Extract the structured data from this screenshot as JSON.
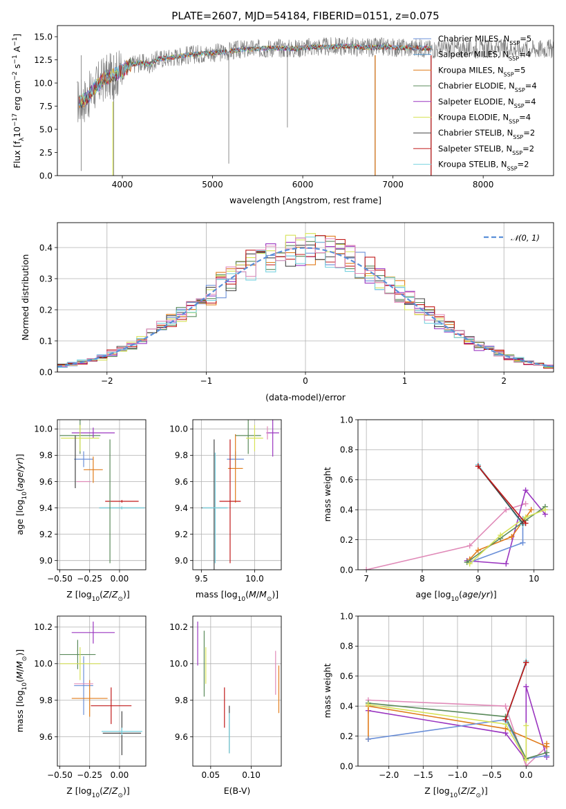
{
  "colors": {
    "Chabrier MILES": "#6a8fd8",
    "Salpeter MILES": "#4a8fc8",
    "Kroupa MILES": "#e07b1a",
    "Chabrier ELODIE": "#5a8a5a",
    "Salpeter ELODIE": "#9a35c0",
    "Kroupa ELODIE": "#d6e256",
    "Chabrier STELIB": "#444444",
    "Salpeter STELIB": "#c01818",
    "Kroupa STELIB": "#78d2e0",
    "data": "#808080",
    "extra_pink": "#e08ab8"
  },
  "chart_data": [
    {
      "type": "line",
      "title": "PLATE=2607, MJD=54184, FIBERID=0151, z=0.075",
      "xlabel": "wavelength [Angstrom, rest frame]",
      "ylabel": "Flux [f$_\\lambda$10$^{-17}$ erg cm$^{-2}$ s$^{-1}$ A$^{-1}$]",
      "ylabel_parts": [
        "Flux [f",
        "λ",
        "10",
        "−17",
        " erg cm",
        "−2",
        " s",
        "−1",
        " A",
        "−1",
        "]"
      ],
      "xlim": [
        3280,
        8780
      ],
      "ylim": [
        0,
        16.2
      ],
      "xticks": [
        "4000",
        "5000",
        "6000",
        "7000",
        "8000"
      ],
      "yticks": [
        "0.0",
        "2.5",
        "5.0",
        "7.5",
        "10.0",
        "12.5",
        "15.0"
      ],
      "xtick_values": [
        4000,
        5000,
        6000,
        7000,
        8000
      ],
      "ytick_values": [
        0,
        2.5,
        5,
        7.5,
        10,
        12.5,
        15
      ],
      "legend_position": "upper-right",
      "series": [
        {
          "name": "Chabrier MILES, N$_{SSP}$=5",
          "label": "Chabrier MILES, N",
          "sub": "SSP",
          "suffix": "=5",
          "color_key": "Chabrier MILES"
        },
        {
          "name": "Salpeter MILES, N$_{SSP}$=4",
          "label": "Salpeter MILES, N",
          "sub": "SSP",
          "suffix": "=4",
          "color_key": "Salpeter MILES"
        },
        {
          "name": "Kroupa MILES, N$_{SSP}$=5",
          "label": "Kroupa MILES, N",
          "sub": "SSP",
          "suffix": "=5",
          "color_key": "Kroupa MILES"
        },
        {
          "name": "Chabrier ELODIE, N$_{SSP}$=4",
          "label": "Chabrier ELODIE, N",
          "sub": "SSP",
          "suffix": "=4",
          "color_key": "Chabrier ELODIE"
        },
        {
          "name": "Salpeter ELODIE, N$_{SSP}$=4",
          "label": "Salpeter ELODIE, N",
          "sub": "SSP",
          "suffix": "=4",
          "color_key": "Salpeter ELODIE"
        },
        {
          "name": "Kroupa ELODIE, N$_{SSP}$=4",
          "label": "Kroupa ELODIE, N",
          "sub": "SSP",
          "suffix": "=4",
          "color_key": "Kroupa ELODIE"
        },
        {
          "name": "Chabrier STELIB, N$_{SSP}$=2",
          "label": "Chabrier STELIB, N",
          "sub": "SSP",
          "suffix": "=2",
          "color_key": "Chabrier STELIB"
        },
        {
          "name": "Salpeter STELIB, N$_{SSP}$=2",
          "label": "Salpeter STELIB, N",
          "sub": "SSP",
          "suffix": "=2",
          "color_key": "Salpeter STELIB"
        },
        {
          "name": "Kroupa STELIB, N$_{SSP}$=2",
          "label": "Kroupa STELIB, N",
          "sub": "SSP",
          "suffix": "=2",
          "color_key": "Kroupa STELIB"
        }
      ],
      "spectrum_anchors": {
        "x": [
          3520,
          3600,
          3700,
          3800,
          3900,
          4000,
          4100,
          4200,
          4300,
          4400,
          4500,
          4700,
          4900,
          5100,
          5300,
          5500,
          5700,
          5900,
          6100,
          6300,
          6500,
          6700,
          6900,
          7100,
          7300,
          7400
        ],
        "y": [
          8.0,
          8.3,
          9.5,
          10.5,
          10.8,
          11.3,
          12.0,
          12.2,
          12.0,
          12.6,
          12.7,
          13.0,
          13.2,
          13.3,
          13.6,
          13.7,
          13.8,
          13.7,
          13.9,
          13.9,
          14.0,
          13.8,
          13.9,
          13.8,
          13.8,
          13.7
        ]
      },
      "spectrum_noise": 1.3,
      "spectrum_range": [
        3500,
        7430
      ],
      "dips": [
        {
          "x": 3545,
          "y": 0.5
        },
        {
          "x": 3905,
          "y": 0.0
        },
        {
          "x": 5180,
          "y": 1.3
        },
        {
          "x": 5830,
          "y": 5.2
        },
        {
          "x": 6800,
          "y": 0.0
        },
        {
          "x": 7420,
          "y": 0.0
        }
      ]
    },
    {
      "type": "histogram",
      "xlabel": "(data-model)/error",
      "ylabel": "Normed distribution",
      "xlim": [
        -2.5,
        2.5
      ],
      "ylim": [
        0,
        0.48
      ],
      "xticks": [
        "−2",
        "−1",
        "0",
        "1",
        "2"
      ],
      "yticks": [
        "0.0",
        "0.1",
        "0.2",
        "0.3",
        "0.4"
      ],
      "xtick_values": [
        -2,
        -1,
        0,
        1,
        2
      ],
      "ytick_values": [
        0,
        0.1,
        0.2,
        0.3,
        0.4
      ],
      "bin_width": 0.1,
      "grid": true,
      "legend_position": "upper-right",
      "legend_label": "𝒩(0, 1)",
      "reference_curve": {
        "name": "N(0,1)",
        "mean": 0,
        "sigma": 1,
        "color": "#5b8fd8"
      }
    },
    {
      "type": "errorbar",
      "xlabel": "Z [log$_{10}$(Z/Z$_\\odot$)]",
      "xlabel_parts": [
        "Z [log",
        "10",
        "(",
        "Z",
        "/",
        "Z",
        "⊙",
        ")]"
      ],
      "ylabel": "age  [log$_{10}$(age/yr)]",
      "ylabel_parts": [
        "age  [log",
        "10",
        "(",
        "age",
        "/",
        "yr",
        ")]"
      ],
      "xlim": [
        -0.52,
        0.22
      ],
      "ylim": [
        8.93,
        10.07
      ],
      "xticks": [
        "−0.50",
        "−0.25",
        "0.00"
      ],
      "xtick_values": [
        -0.5,
        -0.25,
        0.0
      ],
      "yticks": [
        "9.0",
        "9.2",
        "9.4",
        "9.6",
        "9.8",
        "10.0"
      ],
      "ytick_values": [
        9.0,
        9.2,
        9.4,
        9.6,
        9.8,
        10.0
      ],
      "points": [
        {
          "c": "Chabrier MILES",
          "x": -0.3,
          "y": 9.77,
          "xe": 0.08,
          "ye": 0.06
        },
        {
          "c": "Kroupa MILES",
          "x": -0.22,
          "y": 9.69,
          "xe": 0.08,
          "ye": 0.1
        },
        {
          "c": "Chabrier ELODIE",
          "x": -0.33,
          "y": 9.95,
          "xe": 0.17,
          "ye": 0.14
        },
        {
          "c": "Salpeter ELODIE",
          "x": -0.22,
          "y": 9.97,
          "xe": 0.18,
          "ye": 0.04
        },
        {
          "c": "Kroupa ELODIE",
          "x": -0.33,
          "y": 9.93,
          "xe": 0.16,
          "ye": 0.1
        },
        {
          "c": "Salpeter STELIB",
          "x": 0.02,
          "y": 9.45,
          "xe": 0.14,
          "ye": 0.01
        },
        {
          "c": "Chabrier STELIB",
          "x": 0.02,
          "y": 9.4,
          "xe": 0.19,
          "ye": 0.01
        },
        {
          "c": "Kroupa STELIB",
          "x": 0.02,
          "y": 9.4,
          "xe": 0.19,
          "ye": 0.01
        },
        {
          "c": "Chabrier ELODIE",
          "x": -0.08,
          "y": 9.45,
          "xe": 0.0,
          "ye": 0.47
        },
        {
          "c": "Chabrier STELIB",
          "x": -0.37,
          "y": 9.75,
          "xe": 0.0,
          "ye": 0.2
        },
        {
          "c": "extra_pink",
          "x": -0.3,
          "y": 9.6,
          "xe": 0.06,
          "ye": 0.0
        }
      ]
    },
    {
      "type": "errorbar",
      "xlabel": "mass [log$_{10}$(M/M$_\\odot$)]",
      "xlabel_parts": [
        "mass [log",
        "10",
        "(",
        "M",
        "/",
        "M",
        "⊙",
        ")]"
      ],
      "xlim": [
        9.42,
        10.25
      ],
      "ylim": [
        8.93,
        10.07
      ],
      "xticks": [
        "9.5",
        "10.0"
      ],
      "xtick_values": [
        9.5,
        10.0
      ],
      "yticks": [
        "9.0",
        "9.2",
        "9.4",
        "9.6",
        "9.8",
        "10.0"
      ],
      "ytick_values": [
        9.0,
        9.2,
        9.4,
        9.6,
        9.8,
        10.0
      ],
      "points": [
        {
          "c": "Chabrier MILES",
          "x": 9.82,
          "y": 9.77,
          "xe": 0.08,
          "ye": 0.06
        },
        {
          "c": "Kroupa MILES",
          "x": 9.82,
          "y": 9.7,
          "xe": 0.07,
          "ye": 0.26
        },
        {
          "c": "Chabrier ELODIE",
          "x": 9.94,
          "y": 9.95,
          "xe": 0.12,
          "ye": 0.14
        },
        {
          "c": "Salpeter ELODIE",
          "x": 10.17,
          "y": 9.97,
          "xe": 0.06,
          "ye": 0.18
        },
        {
          "c": "Kroupa ELODIE",
          "x": 10.0,
          "y": 9.93,
          "xe": 0.08,
          "ye": 0.1
        },
        {
          "c": "Salpeter STELIB",
          "x": 9.77,
          "y": 9.45,
          "xe": 0.1,
          "ye": 0.47
        },
        {
          "c": "Chabrier STELIB",
          "x": 9.62,
          "y": 9.4,
          "xe": 0.12,
          "ye": 0.52
        },
        {
          "c": "Kroupa STELIB",
          "x": 9.63,
          "y": 9.4,
          "xe": 0.12,
          "ye": 0.42
        },
        {
          "c": "extra_pink",
          "x": 10.12,
          "y": 9.97,
          "xe": 0.0,
          "ye": 0.05
        }
      ]
    },
    {
      "type": "line",
      "xlabel": "age  [log$_{10}$(age/yr)]",
      "xlabel_parts": [
        "age  [log",
        "10",
        "(",
        "age",
        "/",
        "yr",
        ")]"
      ],
      "ylabel": "mass weight",
      "xlim": [
        6.85,
        10.35
      ],
      "ylim": [
        0,
        1.0
      ],
      "xticks": [
        "7",
        "8",
        "9",
        "10"
      ],
      "xtick_values": [
        7,
        8,
        9,
        10
      ],
      "yticks": [
        "0.0",
        "0.2",
        "0.4",
        "0.6",
        "0.8",
        "1.0"
      ],
      "ytick_values": [
        0,
        0.2,
        0.4,
        0.6,
        0.8,
        1.0
      ],
      "grid": true,
      "series": [
        {
          "c": "extra_pink",
          "x": [
            7.0,
            8.85,
            9.5,
            9.85
          ],
          "y": [
            0.0,
            0.16,
            0.4,
            0.44
          ]
        },
        {
          "c": "Salpeter ELODIE",
          "x": [
            8.8,
            9.5,
            9.85,
            10.2
          ],
          "y": [
            0.06,
            0.04,
            0.53,
            0.37
          ]
        },
        {
          "c": "Kroupa MILES",
          "x": [
            8.85,
            9.0,
            9.6,
            9.95
          ],
          "y": [
            0.07,
            0.13,
            0.22,
            0.4
          ]
        },
        {
          "c": "Chabrier MILES",
          "x": [
            8.85,
            9.8,
            9.8
          ],
          "y": [
            0.05,
            0.18,
            0.34
          ]
        },
        {
          "c": "Chabrier ELODIE",
          "x": [
            8.8,
            9.4,
            9.85,
            10.2
          ],
          "y": [
            0.05,
            0.21,
            0.33,
            0.42
          ]
        },
        {
          "c": "Kroupa ELODIE",
          "x": [
            8.85,
            9.4,
            9.85,
            10.2
          ],
          "y": [
            0.04,
            0.23,
            0.35,
            0.4
          ]
        },
        {
          "c": "Kroupa STELIB",
          "x": [
            9.0,
            9.8
          ],
          "y": [
            0.7,
            0.3
          ]
        },
        {
          "c": "Chabrier STELIB",
          "x": [
            9.0,
            9.8
          ],
          "y": [
            0.69,
            0.31
          ]
        },
        {
          "c": "Salpeter STELIB",
          "x": [
            9.0,
            9.85
          ],
          "y": [
            0.69,
            0.31
          ]
        }
      ]
    },
    {
      "type": "errorbar",
      "xlabel": "Z [log$_{10}$(Z/Z$_\\odot$)]",
      "xlabel_parts": [
        "Z [log",
        "10",
        "(",
        "Z",
        "/",
        "Z",
        "⊙",
        ")]"
      ],
      "ylabel": "mass [log$_{10}$(M/M$_\\odot$)]",
      "ylabel_parts": [
        "mass [log",
        "10",
        "(",
        "M",
        "/",
        "M",
        "⊙",
        ")]"
      ],
      "xlim": [
        -0.52,
        0.22
      ],
      "ylim": [
        9.44,
        10.26
      ],
      "xticks": [
        "−0.50",
        "−0.25",
        "0.00"
      ],
      "xtick_values": [
        -0.5,
        -0.25,
        0.0
      ],
      "yticks": [
        "9.6",
        "9.8",
        "10.0",
        "10.2"
      ],
      "ytick_values": [
        9.6,
        9.8,
        10.0,
        10.2
      ],
      "points": [
        {
          "c": "Chabrier MILES",
          "x": -0.3,
          "y": 9.88,
          "xe": 0.08,
          "ye": 0.16
        },
        {
          "c": "Kroupa MILES",
          "x": -0.25,
          "y": 9.81,
          "xe": 0.15,
          "ye": 0.1
        },
        {
          "c": "Chabrier ELODIE",
          "x": -0.35,
          "y": 10.05,
          "xe": 0.15,
          "ye": 0.08
        },
        {
          "c": "Salpeter ELODIE",
          "x": -0.22,
          "y": 10.17,
          "xe": 0.18,
          "ye": 0.06
        },
        {
          "c": "Kroupa ELODIE",
          "x": -0.33,
          "y": 10.0,
          "xe": 0.17,
          "ye": 0.09
        },
        {
          "c": "Salpeter STELIB",
          "x": -0.07,
          "y": 9.77,
          "xe": 0.17,
          "ye": 0.1
        },
        {
          "c": "Chabrier STELIB",
          "x": 0.02,
          "y": 9.62,
          "xe": 0.16,
          "ye": 0.12
        },
        {
          "c": "Kroupa STELIB",
          "x": 0.02,
          "y": 9.63,
          "xe": 0.17,
          "ye": 0.02
        },
        {
          "c": "extra_pink",
          "x": -0.3,
          "y": 9.89,
          "xe": 0.08,
          "ye": 0.0
        }
      ]
    },
    {
      "type": "errorbar",
      "xlabel": "E(B-V)",
      "xlim": [
        0.028,
        0.137
      ],
      "ylim": [
        9.44,
        10.26
      ],
      "xticks": [
        "0.05",
        "0.10"
      ],
      "xtick_values": [
        0.05,
        0.1
      ],
      "yticks": [
        "9.6",
        "9.8",
        "10.0",
        "10.2"
      ],
      "ytick_values": [
        9.6,
        9.8,
        10.0,
        10.2
      ],
      "points": [
        {
          "c": "Salpeter ELODIE",
          "x": 0.034,
          "y": 10.11,
          "xe": 0,
          "ye": 0.12
        },
        {
          "c": "Kroupa ELODIE",
          "x": 0.044,
          "y": 9.99,
          "xe": 0,
          "ye": 0.1
        },
        {
          "c": "Chabrier ELODIE",
          "x": 0.042,
          "y": 10.0,
          "xe": 0,
          "ye": 0.18
        },
        {
          "c": "Salpeter STELIB",
          "x": 0.067,
          "y": 9.76,
          "xe": 0,
          "ye": 0.11
        },
        {
          "c": "Chabrier STELIB",
          "x": 0.073,
          "y": 9.64,
          "xe": 0,
          "ye": 0.13
        },
        {
          "c": "Kroupa STELIB",
          "x": 0.073,
          "y": 9.62,
          "xe": 0,
          "ye": 0.11
        },
        {
          "c": "extra_pink",
          "x": 0.13,
          "y": 9.95,
          "xe": 0,
          "ye": 0.12
        },
        {
          "c": "Kroupa MILES",
          "x": 0.134,
          "y": 9.86,
          "xe": 0,
          "ye": 0.13
        }
      ]
    },
    {
      "type": "line",
      "xlabel": "Z [log$_{10}$(Z/Z$_\\odot$)]",
      "xlabel_parts": [
        "Z [log",
        "10",
        "(",
        "Z",
        "/",
        "Z",
        "⊙",
        ")]"
      ],
      "ylabel": "mass weight",
      "xlim": [
        -2.45,
        0.4
      ],
      "ylim": [
        0,
        1.0
      ],
      "xticks": [
        "−2.0",
        "−1.5",
        "−1.0",
        "−0.5",
        "0.0"
      ],
      "xtick_values": [
        -2.0,
        -1.5,
        -1.0,
        -0.5,
        0.0
      ],
      "yticks": [
        "0.0",
        "0.2",
        "0.4",
        "0.6",
        "0.8",
        "1.0"
      ],
      "ytick_values": [
        0,
        0.2,
        0.4,
        0.6,
        0.8,
        1.0
      ],
      "grid": true,
      "series": [
        {
          "c": "extra_pink",
          "x": [
            -2.3,
            -0.3,
            0.0,
            0.3
          ],
          "y": [
            0.44,
            0.4,
            0.0,
            0.13
          ]
        },
        {
          "c": "Salpeter ELODIE",
          "x": [
            -2.3,
            -0.3,
            0.0,
            0.0,
            0.3
          ],
          "y": [
            0.37,
            0.22,
            0.04,
            0.53,
            0.06
          ]
        },
        {
          "c": "Kroupa MILES",
          "x": [
            -2.3,
            -2.3,
            -0.3,
            0.3,
            0.3
          ],
          "y": [
            0.18,
            0.4,
            0.25,
            0.13,
            0.15
          ]
        },
        {
          "c": "Chabrier MILES",
          "x": [
            -2.3,
            -0.3,
            0.0,
            0.3
          ],
          "y": [
            0.18,
            0.31,
            0.05,
            0.07
          ]
        },
        {
          "c": "Chabrier ELODIE",
          "x": [
            -2.3,
            -0.3,
            0.0,
            0.3
          ],
          "y": [
            0.42,
            0.33,
            0.05,
            0.09
          ]
        },
        {
          "c": "Kroupa ELODIE",
          "x": [
            -2.3,
            -0.3,
            0.0,
            0.0
          ],
          "y": [
            0.41,
            0.28,
            0.04,
            0.27
          ]
        },
        {
          "c": "Kroupa STELIB",
          "x": [
            -0.3,
            0.0
          ],
          "y": [
            0.3,
            0.7
          ]
        },
        {
          "c": "Chabrier STELIB",
          "x": [
            -0.3,
            0.0
          ],
          "y": [
            0.31,
            0.69
          ]
        },
        {
          "c": "Salpeter STELIB",
          "x": [
            -0.3,
            0.0
          ],
          "y": [
            0.31,
            0.69
          ]
        }
      ]
    }
  ]
}
